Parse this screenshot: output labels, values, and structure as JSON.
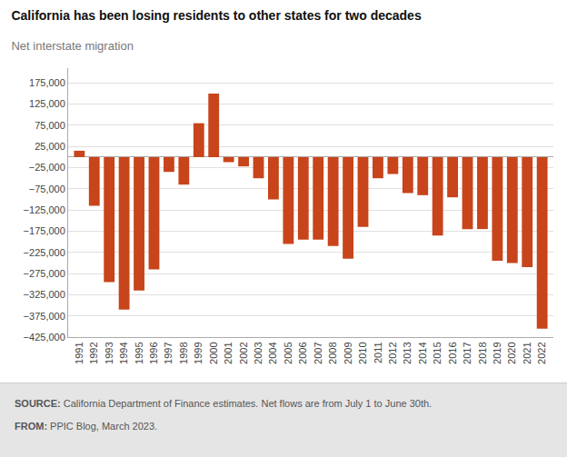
{
  "chart_data": {
    "type": "bar",
    "title": "California has been losing residents to other states for two decades",
    "subtitle": "Net interstate migration",
    "x": [
      1991,
      1992,
      1993,
      1994,
      1995,
      1996,
      1997,
      1998,
      1999,
      2000,
      2001,
      2002,
      2003,
      2004,
      2005,
      2006,
      2007,
      2008,
      2009,
      2010,
      2011,
      2012,
      2013,
      2014,
      2015,
      2016,
      2017,
      2018,
      2019,
      2020,
      2021,
      2022
    ],
    "values": [
      15000,
      -115000,
      -295000,
      -360000,
      -315000,
      -265000,
      -35000,
      -65000,
      80000,
      150000,
      -12000,
      -22000,
      -50000,
      -100000,
      -205000,
      -195000,
      -195000,
      -210000,
      -240000,
      -165000,
      -50000,
      -40000,
      -85000,
      -90000,
      -185000,
      -95000,
      -170000,
      -170000,
      -245000,
      -250000,
      -260000,
      -405000
    ],
    "color": "#C8441A",
    "xlim": [
      1990.25,
      2022.75
    ],
    "xticks": [
      1991,
      1992,
      1993,
      1994,
      1995,
      1996,
      1997,
      1998,
      1999,
      2000,
      2001,
      2002,
      2003,
      2004,
      2005,
      2006,
      2007,
      2008,
      2009,
      2010,
      2011,
      2012,
      2013,
      2014,
      2015,
      2016,
      2017,
      2018,
      2019,
      2020,
      2021,
      2022
    ],
    "ylim": [
      -425000,
      210000
    ],
    "yticks": [
      {
        "value": -425000,
        "label": "−425,000"
      },
      {
        "value": -375000,
        "label": "−375,000"
      },
      {
        "value": -325000,
        "label": "−325,000"
      },
      {
        "value": -275000,
        "label": "−275,000"
      },
      {
        "value": -225000,
        "label": "−225,000"
      },
      {
        "value": -175000,
        "label": "−175,000"
      },
      {
        "value": -125000,
        "label": "−125,000"
      },
      {
        "value": -75000,
        "label": "−75,000"
      },
      {
        "value": -25000,
        "label": "−25,000"
      },
      {
        "value": 25000,
        "label": "25,000"
      },
      {
        "value": 75000,
        "label": "75,000"
      },
      {
        "value": 125000,
        "label": "125,000"
      },
      {
        "value": 175000,
        "label": "175,000"
      }
    ],
    "grid": true,
    "annotations": [
      "SOURCE: California Department of Finance estimates. Net flows are from July 1 to June 30th.",
      "FROM: PPIC Blog, March 2023."
    ]
  }
}
